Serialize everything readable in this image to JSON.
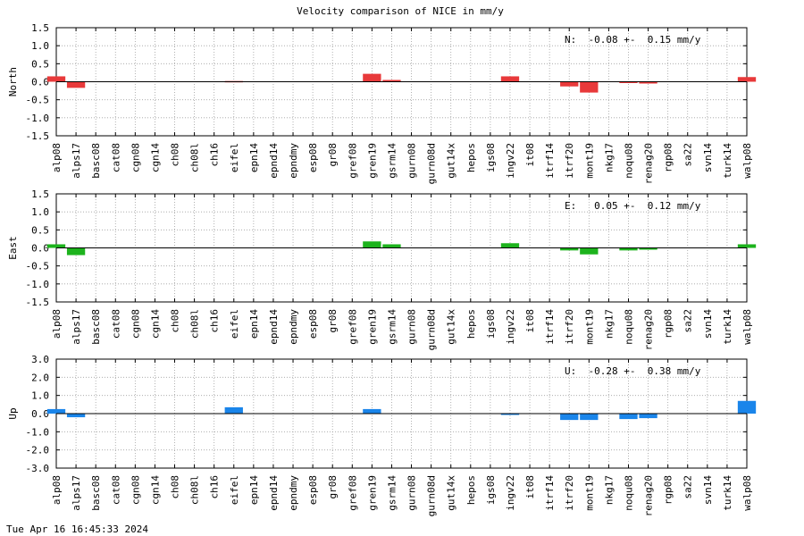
{
  "title": "Velocity comparison of NICE in mm/y",
  "footer": "Tue Apr 16 16:45:33 2024",
  "chart_data": [
    {
      "type": "bar",
      "ylabel": "North",
      "ylim": [
        -1.5,
        1.5
      ],
      "yticks": [
        -1.5,
        -1.0,
        -0.5,
        0.0,
        0.5,
        1.0,
        1.5
      ],
      "grid": true,
      "color": "#e8393a",
      "annotation": "N:  -0.08 +-  0.15 mm/y",
      "categories": [
        "alp08",
        "alps17",
        "basc08",
        "cat08",
        "cgn08",
        "cgn14",
        "ch08",
        "ch08l",
        "ch16",
        "eifel",
        "epn14",
        "epnd14",
        "epndmy",
        "esp08",
        "gr08",
        "gref08",
        "gren19",
        "gsrm14",
        "gurn08",
        "gurn08d",
        "gut14x",
        "hepos",
        "igs08",
        "ingv22",
        "it08",
        "itrf14",
        "itrf20",
        "mont19",
        "nkg17",
        "noqu08",
        "renag20",
        "rgp08",
        "sa22",
        "svn14",
        "turk14",
        "walp08"
      ],
      "values": [
        0.15,
        -0.17,
        null,
        null,
        null,
        null,
        null,
        null,
        null,
        0.02,
        null,
        null,
        null,
        null,
        null,
        null,
        0.22,
        0.05,
        null,
        null,
        null,
        null,
        null,
        0.15,
        null,
        null,
        -0.13,
        -0.3,
        null,
        -0.03,
        -0.05,
        null,
        null,
        null,
        null,
        0.13
      ]
    },
    {
      "type": "bar",
      "ylabel": "East",
      "ylim": [
        -1.5,
        1.5
      ],
      "yticks": [
        -1.5,
        -1.0,
        -0.5,
        0.0,
        0.5,
        1.0,
        1.5
      ],
      "grid": true,
      "color": "#1db31d",
      "annotation": "E:   0.05 +-  0.12 mm/y",
      "categories": [
        "alp08",
        "alps17",
        "basc08",
        "cat08",
        "cgn08",
        "cgn14",
        "ch08",
        "ch08l",
        "ch16",
        "eifel",
        "epn14",
        "epnd14",
        "epndmy",
        "esp08",
        "gr08",
        "gref08",
        "gren19",
        "gsrm14",
        "gurn08",
        "gurn08d",
        "gut14x",
        "hepos",
        "igs08",
        "ingv22",
        "it08",
        "itrf14",
        "itrf20",
        "mont19",
        "nkg17",
        "noqu08",
        "renag20",
        "rgp08",
        "sa22",
        "svn14",
        "turk14",
        "walp08"
      ],
      "values": [
        0.1,
        -0.2,
        null,
        null,
        null,
        null,
        null,
        null,
        null,
        null,
        null,
        null,
        null,
        null,
        null,
        null,
        0.18,
        0.1,
        null,
        null,
        null,
        null,
        null,
        0.13,
        null,
        null,
        -0.07,
        -0.18,
        null,
        -0.07,
        -0.05,
        null,
        null,
        null,
        null,
        0.1
      ]
    },
    {
      "type": "bar",
      "ylabel": "Up",
      "ylim": [
        -3.0,
        3.0
      ],
      "yticks": [
        -3.0,
        -2.0,
        -1.0,
        0.0,
        1.0,
        2.0,
        3.0
      ],
      "grid": true,
      "color": "#1a85ea",
      "annotation": "U:  -0.28 +-  0.38 mm/y",
      "categories": [
        "alp08",
        "alps17",
        "basc08",
        "cat08",
        "cgn08",
        "cgn14",
        "ch08",
        "ch08l",
        "ch16",
        "eifel",
        "epn14",
        "epnd14",
        "epndmy",
        "esp08",
        "gr08",
        "gref08",
        "gren19",
        "gsrm14",
        "gurn08",
        "gurn08d",
        "gut14x",
        "hepos",
        "igs08",
        "ingv22",
        "it08",
        "itrf14",
        "itrf20",
        "mont19",
        "nkg17",
        "noqu08",
        "renag20",
        "rgp08",
        "sa22",
        "svn14",
        "turk14",
        "walp08"
      ],
      "values": [
        0.25,
        -0.2,
        null,
        null,
        null,
        null,
        null,
        null,
        null,
        0.35,
        null,
        null,
        null,
        null,
        null,
        null,
        0.25,
        null,
        null,
        null,
        null,
        null,
        null,
        -0.07,
        null,
        null,
        -0.35,
        -0.35,
        null,
        -0.3,
        -0.25,
        null,
        null,
        null,
        null,
        0.7
      ]
    }
  ]
}
